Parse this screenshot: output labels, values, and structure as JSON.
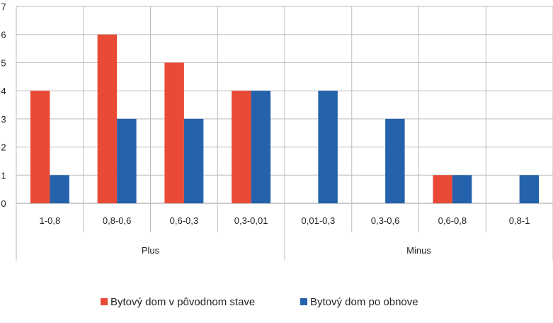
{
  "chart_data": {
    "type": "bar",
    "title": "",
    "xlabel": "",
    "ylabel": "",
    "ylim": [
      0,
      7
    ],
    "yticks": [
      0,
      1,
      2,
      3,
      4,
      5,
      6,
      7
    ],
    "grid": true,
    "legend_position": "bottom",
    "groups": [
      {
        "label": "Plus",
        "categories": [
          "1-0,8",
          "0,8-0,6",
          "0,6-0,3",
          "0,3-0,01"
        ]
      },
      {
        "label": "Minus",
        "categories": [
          "0,01-0,3",
          "0,3-0,6",
          "0,6-0,8",
          "0,8-1"
        ]
      }
    ],
    "categories": [
      "1-0,8",
      "0,8-0,6",
      "0,6-0,3",
      "0,3-0,01",
      "0,01-0,3",
      "0,3-0,6",
      "0,6-0,8",
      "0,8-1"
    ],
    "series": [
      {
        "name": "Bytový dom v pôvodnom stave",
        "color": "#E84A35",
        "values": [
          4,
          6,
          5,
          4,
          0,
          0,
          1,
          0
        ]
      },
      {
        "name": "Bytový dom po obnove",
        "color": "#2462AC",
        "values": [
          1,
          3,
          3,
          4,
          4,
          3,
          1,
          1
        ]
      }
    ]
  }
}
